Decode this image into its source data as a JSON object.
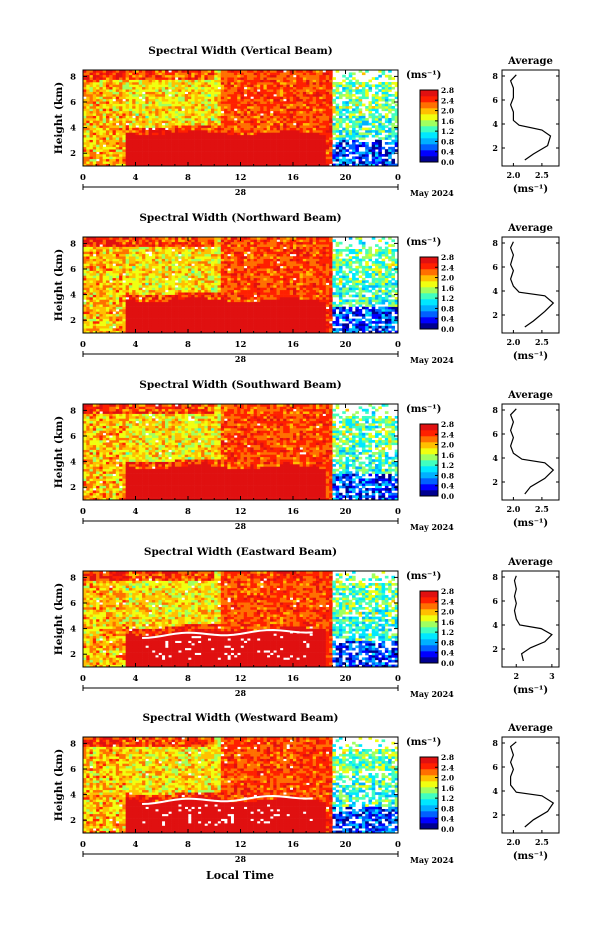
{
  "chart_data": [
    {
      "type": "heatmap",
      "title": "Spectral Width (Vertical Beam)",
      "ylabel": "Height (km)",
      "y_ticks": [
        "2",
        "4",
        "6",
        "8"
      ],
      "x_ticks": [
        "0",
        "4",
        "8",
        "12",
        "16",
        "20",
        "0"
      ],
      "date_label": "28",
      "month_label": "May 2024",
      "unit": "(ms⁻¹)",
      "colorbar_ticks": [
        "0.0",
        "0.4",
        "0.8",
        "1.2",
        "1.6",
        "2.0",
        "2.4",
        "2.8"
      ],
      "avg_title": "Average",
      "avg_x_ticks": [
        "2.0",
        "2.5"
      ],
      "avg_y_ticks": [
        "2",
        "4",
        "6",
        "8"
      ],
      "avg_xlabel": "(ms⁻¹)",
      "avg_xlim": [
        1.8,
        2.8
      ],
      "avg_profile": [
        [
          2.2,
          1
        ],
        [
          2.35,
          1.5
        ],
        [
          2.6,
          2.2
        ],
        [
          2.65,
          3
        ],
        [
          2.5,
          3.5
        ],
        [
          2.1,
          3.9
        ],
        [
          2.0,
          4.3
        ],
        [
          2.0,
          5
        ],
        [
          1.95,
          5.6
        ],
        [
          2.0,
          6.2
        ],
        [
          2.0,
          7
        ],
        [
          1.95,
          7.6
        ],
        [
          2.05,
          8.1
        ]
      ]
    },
    {
      "type": "heatmap",
      "title": "Spectral Width (Northward Beam)",
      "ylabel": "Height (km)",
      "y_ticks": [
        "2",
        "4",
        "6",
        "8"
      ],
      "x_ticks": [
        "0",
        "4",
        "8",
        "12",
        "16",
        "20",
        "0"
      ],
      "date_label": "28",
      "month_label": "May 2024",
      "unit": "(ms⁻¹)",
      "colorbar_ticks": [
        "0.0",
        "0.4",
        "0.8",
        "1.2",
        "1.6",
        "2.0",
        "2.4",
        "2.8"
      ],
      "avg_title": "Average",
      "avg_x_ticks": [
        "2.0",
        "2.5"
      ],
      "avg_y_ticks": [
        "2",
        "4",
        "6",
        "8"
      ],
      "avg_xlabel": "(ms⁻¹)",
      "avg_xlim": [
        1.8,
        2.8
      ],
      "avg_profile": [
        [
          2.2,
          1
        ],
        [
          2.35,
          1.5
        ],
        [
          2.55,
          2.3
        ],
        [
          2.7,
          3
        ],
        [
          2.55,
          3.6
        ],
        [
          2.1,
          3.9
        ],
        [
          2.0,
          4.4
        ],
        [
          1.95,
          5
        ],
        [
          2.0,
          5.7
        ],
        [
          1.95,
          6.2
        ],
        [
          2.0,
          7
        ],
        [
          1.95,
          7.6
        ],
        [
          2.0,
          8.1
        ]
      ]
    },
    {
      "type": "heatmap",
      "title": "Spectral Width (Southward Beam)",
      "ylabel": "Height (km)",
      "y_ticks": [
        "2",
        "4",
        "6",
        "8"
      ],
      "x_ticks": [
        "0",
        "4",
        "8",
        "12",
        "16",
        "20",
        "0"
      ],
      "date_label": "28",
      "month_label": "May 2024",
      "unit": "(ms⁻¹)",
      "colorbar_ticks": [
        "0.0",
        "0.4",
        "0.8",
        "1.2",
        "1.6",
        "2.0",
        "2.4",
        "2.8"
      ],
      "avg_title": "Average",
      "avg_x_ticks": [
        "2.0",
        "2.5"
      ],
      "avg_y_ticks": [
        "2",
        "4",
        "6",
        "8"
      ],
      "avg_xlabel": "(ms⁻¹)",
      "avg_xlim": [
        1.8,
        2.8
      ],
      "avg_profile": [
        [
          2.2,
          1
        ],
        [
          2.3,
          1.6
        ],
        [
          2.55,
          2.3
        ],
        [
          2.7,
          3
        ],
        [
          2.55,
          3.6
        ],
        [
          2.15,
          3.9
        ],
        [
          2.0,
          4.4
        ],
        [
          1.95,
          5
        ],
        [
          2.0,
          5.7
        ],
        [
          1.95,
          6.3
        ],
        [
          2.0,
          7
        ],
        [
          1.95,
          7.6
        ],
        [
          2.05,
          8.1
        ]
      ]
    },
    {
      "type": "heatmap",
      "title": "Spectral Width (Eastward Beam)",
      "ylabel": "Height (km)",
      "y_ticks": [
        "2",
        "4",
        "6",
        "8"
      ],
      "x_ticks": [
        "0",
        "4",
        "8",
        "12",
        "16",
        "20",
        "0"
      ],
      "date_label": "28",
      "month_label": "May 2024",
      "unit": "(ms⁻¹)",
      "colorbar_ticks": [
        "0.0",
        "0.4",
        "0.8",
        "1.2",
        "1.6",
        "2.0",
        "2.4",
        "2.8"
      ],
      "avg_title": "Average",
      "avg_x_ticks": [
        "2",
        "3"
      ],
      "avg_y_ticks": [
        "2",
        "4",
        "6",
        "8"
      ],
      "avg_xlabel": "(ms⁻¹)",
      "avg_xlim": [
        1.6,
        3.2
      ],
      "avg_profile": [
        [
          2.2,
          1
        ],
        [
          2.15,
          1.6
        ],
        [
          2.4,
          2.1
        ],
        [
          2.8,
          2.6
        ],
        [
          3.0,
          3.2
        ],
        [
          2.7,
          3.7
        ],
        [
          2.1,
          4
        ],
        [
          2.0,
          4.5
        ],
        [
          1.95,
          5.2
        ],
        [
          2.0,
          5.8
        ],
        [
          1.95,
          6.4
        ],
        [
          2.0,
          7
        ],
        [
          1.95,
          7.7
        ],
        [
          2.0,
          8.1
        ]
      ]
    },
    {
      "type": "heatmap",
      "title": "Spectral Width (Westward Beam)",
      "ylabel": "Height (km)",
      "y_ticks": [
        "2",
        "4",
        "6",
        "8"
      ],
      "x_ticks": [
        "0",
        "4",
        "8",
        "12",
        "16",
        "20",
        "0"
      ],
      "date_label": "28",
      "month_label": "May 2024",
      "unit": "(ms⁻¹)",
      "colorbar_ticks": [
        "0.0",
        "0.4",
        "0.8",
        "1.2",
        "1.6",
        "2.0",
        "2.4",
        "2.8"
      ],
      "avg_title": "Average",
      "avg_x_ticks": [
        "2.0",
        "2.5"
      ],
      "avg_y_ticks": [
        "2",
        "4",
        "6",
        "8"
      ],
      "avg_xlabel": "(ms⁻¹)",
      "avg_xlim": [
        1.8,
        2.8
      ],
      "avg_profile": [
        [
          2.2,
          1
        ],
        [
          2.35,
          1.6
        ],
        [
          2.6,
          2.3
        ],
        [
          2.7,
          3
        ],
        [
          2.5,
          3.6
        ],
        [
          2.05,
          3.9
        ],
        [
          1.95,
          4.5
        ],
        [
          1.95,
          5.2
        ],
        [
          2.0,
          5.8
        ],
        [
          1.95,
          6.4
        ],
        [
          2.0,
          7
        ],
        [
          1.95,
          7.7
        ],
        [
          2.05,
          8.1
        ]
      ]
    }
  ],
  "footer": {
    "xlabel": "Local Time"
  },
  "colors": {
    "colormap": [
      "#000090",
      "#0000ff",
      "#0060ff",
      "#00b0ff",
      "#00e8ff",
      "#40ffc0",
      "#a0ff60",
      "#f0ff10",
      "#ffc000",
      "#ff7000",
      "#ff2000",
      "#e01010"
    ],
    "nodata": "#ffffff"
  }
}
